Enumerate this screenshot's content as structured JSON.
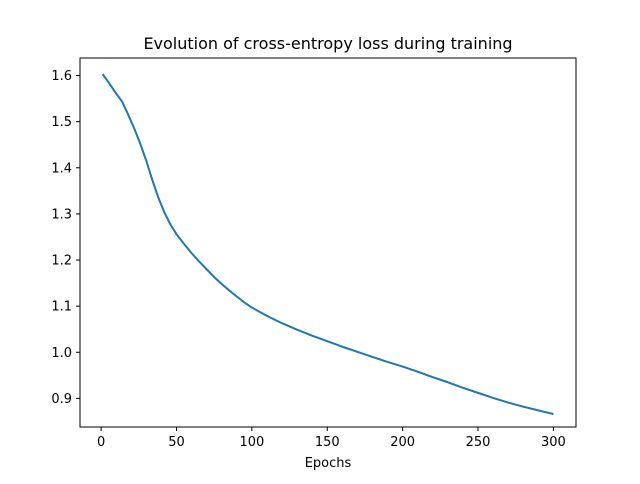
{
  "chart_data": {
    "type": "line",
    "title": "Evolution of cross-entropy loss during training",
    "xlabel": "Epochs",
    "ylabel": "",
    "xlim": [
      -14,
      315
    ],
    "ylim": [
      0.838,
      1.638
    ],
    "x_ticks": [
      0,
      50,
      100,
      150,
      200,
      250,
      300
    ],
    "y_ticks": [
      0.9,
      1.0,
      1.1,
      1.2,
      1.3,
      1.4,
      1.5,
      1.6
    ],
    "x_tick_labels": [
      "0",
      "50",
      "100",
      "150",
      "200",
      "250",
      "300"
    ],
    "y_tick_labels": [
      "0.9",
      "1.0",
      "1.1",
      "1.2",
      "1.3",
      "1.4",
      "1.5",
      "1.6"
    ],
    "grid": false,
    "legend": "none",
    "series": [
      {
        "color": "#1f77b4",
        "points": [
          [
            1,
            1.603
          ],
          [
            5,
            1.585
          ],
          [
            10,
            1.561
          ],
          [
            14,
            1.543
          ],
          [
            18,
            1.515
          ],
          [
            22,
            1.485
          ],
          [
            26,
            1.452
          ],
          [
            30,
            1.415
          ],
          [
            34,
            1.373
          ],
          [
            38,
            1.335
          ],
          [
            42,
            1.303
          ],
          [
            46,
            1.277
          ],
          [
            50,
            1.256
          ],
          [
            55,
            1.235
          ],
          [
            60,
            1.215
          ],
          [
            65,
            1.197
          ],
          [
            70,
            1.18
          ],
          [
            75,
            1.163
          ],
          [
            80,
            1.148
          ],
          [
            85,
            1.134
          ],
          [
            90,
            1.121
          ],
          [
            95,
            1.108
          ],
          [
            100,
            1.097
          ],
          [
            110,
            1.079
          ],
          [
            120,
            1.063
          ],
          [
            130,
            1.049
          ],
          [
            140,
            1.036
          ],
          [
            150,
            1.024
          ],
          [
            160,
            1.012
          ],
          [
            170,
            1.001
          ],
          [
            180,
            0.99
          ],
          [
            190,
            0.979
          ],
          [
            200,
            0.969
          ],
          [
            210,
            0.958
          ],
          [
            220,
            0.946
          ],
          [
            230,
            0.935
          ],
          [
            240,
            0.923
          ],
          [
            250,
            0.912
          ],
          [
            260,
            0.901
          ],
          [
            270,
            0.891
          ],
          [
            280,
            0.882
          ],
          [
            290,
            0.874
          ],
          [
            300,
            0.866
          ]
        ]
      }
    ]
  }
}
